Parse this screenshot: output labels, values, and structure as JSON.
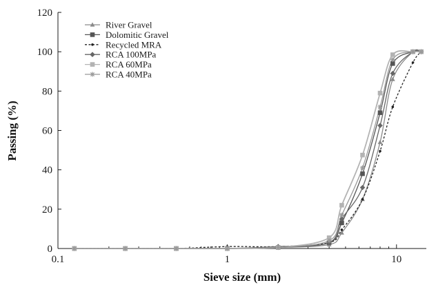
{
  "chart_data": {
    "type": "line",
    "title": "",
    "xlabel": "Sieve size (mm)",
    "ylabel": "Passing (%)",
    "x_scale": "log",
    "xlim": [
      0.1,
      15
    ],
    "ylim": [
      0,
      120
    ],
    "x_ticks": [
      0.1,
      1,
      10
    ],
    "x_tick_labels": [
      "0.1",
      "1",
      "10"
    ],
    "y_ticks": [
      0,
      20,
      40,
      60,
      80,
      100,
      120
    ],
    "y_tick_labels": [
      "0",
      "20",
      "40",
      "60",
      "80",
      "100",
      "120"
    ],
    "grid": false,
    "legend_position": "top-left",
    "series": [
      {
        "name": "River Gravel",
        "marker": "triangle",
        "color": "#8a8a8a",
        "dash": "solid",
        "x": [
          0.125,
          0.25,
          0.5,
          1,
          2,
          4,
          4.75,
          6.3,
          8,
          9.5,
          12.5,
          14
        ],
        "y": [
          0,
          0,
          0,
          0,
          0.5,
          2,
          8,
          25,
          54,
          86,
          100,
          100
        ]
      },
      {
        "name": "Dolomitic Gravel",
        "marker": "square",
        "color": "#555555",
        "dash": "solid",
        "x": [
          0.125,
          0.25,
          0.5,
          1,
          2,
          4,
          4.75,
          6.3,
          8,
          9.5,
          12.5,
          14
        ],
        "y": [
          0,
          0,
          0,
          0,
          0.5,
          3,
          13,
          38,
          69,
          94,
          100,
          100
        ]
      },
      {
        "name": "Recycled MRA",
        "marker": "dot",
        "color": "#222222",
        "dash": "dashed",
        "x": [
          0.125,
          0.25,
          0.5,
          1,
          2,
          4,
          4.75,
          6.3,
          8,
          9.5,
          12.5,
          14
        ],
        "y": [
          0,
          0,
          0,
          1,
          1,
          3,
          9.5,
          25,
          49.5,
          72,
          94.5,
          100
        ]
      },
      {
        "name": "RCA 100MPa",
        "marker": "diamond",
        "color": "#666666",
        "dash": "solid",
        "x": [
          0.125,
          0.25,
          0.5,
          1,
          2,
          4,
          4.75,
          6.3,
          8,
          9.5,
          12.5,
          14
        ],
        "y": [
          0,
          0,
          0,
          0,
          1,
          3,
          15,
          31,
          62.5,
          89,
          100,
          100
        ]
      },
      {
        "name": "RCA 60MPa",
        "marker": "square",
        "color": "#b3b3b3",
        "dash": "solid",
        "x": [
          0.125,
          0.25,
          0.5,
          1,
          2,
          4,
          4.75,
          6.3,
          8,
          9.5,
          12.5,
          14
        ],
        "y": [
          0,
          0,
          0,
          0,
          0.5,
          5.5,
          22,
          47.5,
          79,
          98.5,
          100,
          100
        ]
      },
      {
        "name": "RCA 40MPa",
        "marker": "star",
        "color": "#999999",
        "dash": "solid",
        "x": [
          0.125,
          0.25,
          0.5,
          1,
          2,
          4,
          4.75,
          6.3,
          8,
          9.5,
          12.5,
          14
        ],
        "y": [
          0,
          0,
          0,
          0,
          0.5,
          4,
          17,
          41,
          72,
          96,
          100,
          100
        ]
      }
    ]
  }
}
